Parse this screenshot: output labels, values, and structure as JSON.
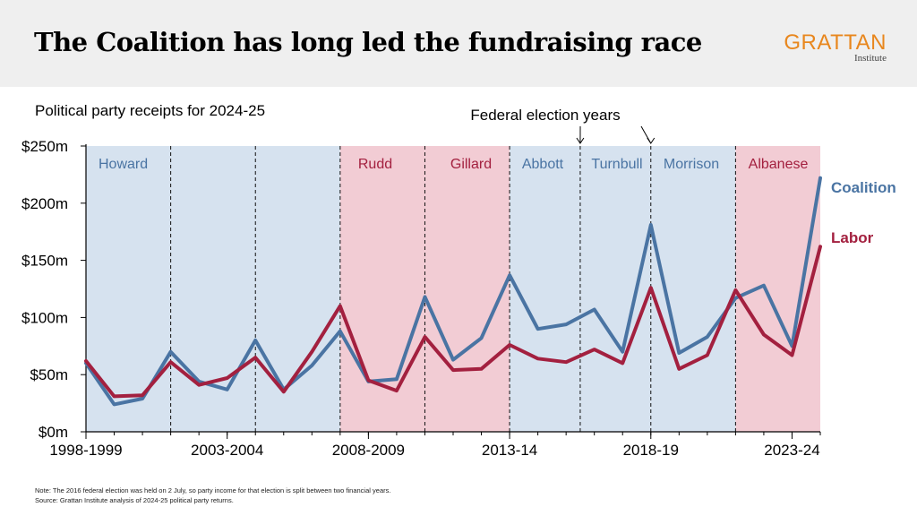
{
  "title": "The Coalition has long led the fundraising race",
  "logo": {
    "main": "GRATTAN",
    "sub": "Institute"
  },
  "subtitle": "Political party receipts for 2024-25",
  "notes": [
    "Note: The 2016 federal election was held on 2 July, so party income for that election is split between two financial years.",
    "Source: Grattan Institute analysis of 2024-25 political party returns."
  ],
  "chart_data": {
    "type": "line",
    "title": "",
    "xlabel": "",
    "ylabel": "",
    "ylim": [
      0,
      250
    ],
    "y_ticks": [
      0,
      50,
      100,
      150,
      200,
      250
    ],
    "y_tick_labels": [
      "$0m",
      "$50m",
      "$100m",
      "$150m",
      "$200m",
      "$250m"
    ],
    "x_start_year": 1998,
    "x_end_year": 2024,
    "x_ticks": [
      {
        "year": 1998,
        "label": "1998-1999"
      },
      {
        "year": 2003,
        "label": "2003-2004"
      },
      {
        "year": 2008,
        "label": "2008-2009"
      },
      {
        "year": 2013,
        "label": "2013-14"
      },
      {
        "year": 2018,
        "label": "2018-19"
      },
      {
        "year": 2023,
        "label": "2023-24"
      }
    ],
    "grid": false,
    "series": [
      {
        "name": "Coalition",
        "color": "#4a74a3",
        "years": [
          1998,
          1999,
          2000,
          2001,
          2002,
          2003,
          2004,
          2005,
          2006,
          2007,
          2008,
          2009,
          2010,
          2011,
          2012,
          2013,
          2014,
          2015,
          2016,
          2017,
          2018,
          2019,
          2020,
          2021,
          2022,
          2023,
          2024
        ],
        "values": [
          60,
          24,
          29,
          70,
          44,
          37,
          80,
          37,
          58,
          88,
          44,
          46,
          118,
          63,
          82,
          137,
          90,
          94,
          107,
          70,
          181,
          69,
          83,
          117,
          128,
          75,
          222
        ]
      },
      {
        "name": "Labor",
        "color": "#a3203f",
        "years": [
          1998,
          1999,
          2000,
          2001,
          2002,
          2003,
          2004,
          2005,
          2006,
          2007,
          2008,
          2009,
          2010,
          2011,
          2012,
          2013,
          2014,
          2015,
          2016,
          2017,
          2018,
          2019,
          2020,
          2021,
          2022,
          2023,
          2024
        ],
        "values": [
          62,
          31,
          32,
          61,
          41,
          47,
          65,
          35,
          70,
          110,
          45,
          36,
          83,
          54,
          55,
          76,
          64,
          61,
          72,
          60,
          126,
          55,
          67,
          124,
          85,
          67,
          162
        ]
      }
    ],
    "prime_minister_periods": [
      {
        "label": "Howard",
        "from": 1998,
        "to": 2007,
        "party": "coalition"
      },
      {
        "label": "Rudd",
        "from": 2007,
        "to": 2010,
        "party": "labor"
      },
      {
        "label": "Gillard",
        "from": 2010,
        "to": 2013,
        "party": "labor"
      },
      {
        "label": "Abbott",
        "from": 2013,
        "to": 2015.5,
        "party": "coalition"
      },
      {
        "label": "Turnbull",
        "from": 2015.5,
        "to": 2018,
        "party": "coalition"
      },
      {
        "label": "Morrison",
        "from": 2018,
        "to": 2021,
        "party": "coalition"
      },
      {
        "label": "Albanese",
        "from": 2021,
        "to": 2024,
        "party": "labor"
      }
    ],
    "election_years": [
      2001,
      2004,
      2007,
      2010,
      2013,
      2015.5,
      2018,
      2021
    ],
    "annotation": "Federal election years",
    "band_colors": {
      "coalition": "#d6e2ef",
      "labor": "#f2ccd4"
    },
    "label_colors": {
      "coalition": "#4a74a3",
      "labor": "#a3203f"
    }
  }
}
